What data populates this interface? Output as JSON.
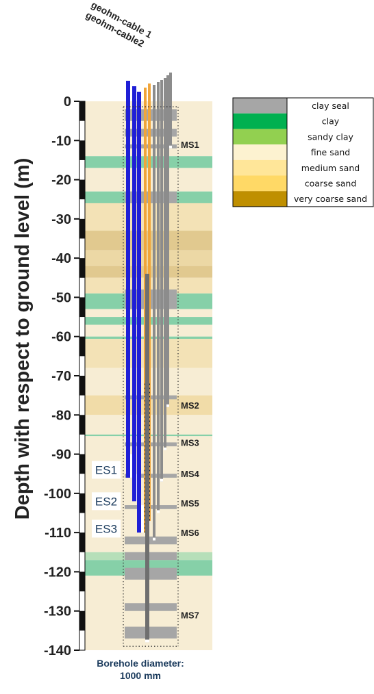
{
  "axis": {
    "ylabel": "Depth with respect to ground level (m)",
    "ticks": [
      0,
      -10,
      -20,
      -30,
      -40,
      -50,
      -60,
      -70,
      -80,
      -90,
      -100,
      -110,
      -120,
      -130,
      -140
    ],
    "range": [
      0,
      -140
    ]
  },
  "cables": [
    "geohm-cable 1",
    "geohm-cable2"
  ],
  "caption": {
    "line1": "Borehole diameter:",
    "line2": "1000 mm"
  },
  "legend": [
    {
      "label": "clay seal",
      "color": "#a6a6a6"
    },
    {
      "label": "clay",
      "color": "#00b050"
    },
    {
      "label": "sandy clay",
      "color": "#92d050"
    },
    {
      "label": "fine sand",
      "color": "#fdf2d0"
    },
    {
      "label": "medium sand",
      "color": "#ffe699"
    },
    {
      "label": "coarse sand",
      "color": "#ffd966"
    },
    {
      "label": "very coarse sand",
      "color": "#bf8f00"
    }
  ],
  "layers": [
    {
      "top": 0,
      "bottom": -14,
      "color": "#f7edd4"
    },
    {
      "top": -14,
      "bottom": -17,
      "color": "#86d0a8"
    },
    {
      "top": -17,
      "bottom": -23,
      "color": "#f7edd4"
    },
    {
      "top": -23,
      "bottom": -26,
      "color": "#86d0a8"
    },
    {
      "top": -26,
      "bottom": -33,
      "color": "#f3e2b6"
    },
    {
      "top": -33,
      "bottom": -38,
      "color": "#e1c98f"
    },
    {
      "top": -38,
      "bottom": -42,
      "color": "#ecd8a5"
    },
    {
      "top": -42,
      "bottom": -45,
      "color": "#e1c98f"
    },
    {
      "top": -45,
      "bottom": -49,
      "color": "#f3e2b6"
    },
    {
      "top": -49,
      "bottom": -53,
      "color": "#86d0a8"
    },
    {
      "top": -53,
      "bottom": -55,
      "color": "#f7edd4"
    },
    {
      "top": -55,
      "bottom": -57,
      "color": "#86d0a8"
    },
    {
      "top": -57,
      "bottom": -60,
      "color": "#f7edd4"
    },
    {
      "top": -60,
      "bottom": -60.6,
      "color": "#86d0a8"
    },
    {
      "top": -60.6,
      "bottom": -68,
      "color": "#f3e2b6"
    },
    {
      "top": -68,
      "bottom": -75,
      "color": "#f7edd4"
    },
    {
      "top": -75,
      "bottom": -80,
      "color": "#f1dca8"
    },
    {
      "top": -80,
      "bottom": -85,
      "color": "#f7edd4"
    },
    {
      "top": -85,
      "bottom": -85.4,
      "color": "#86d0a8"
    },
    {
      "top": -85.4,
      "bottom": -115,
      "color": "#f7edd4"
    },
    {
      "top": -115,
      "bottom": -117,
      "color": "#b6dfb9"
    },
    {
      "top": -117,
      "bottom": -121,
      "color": "#86d0a8"
    },
    {
      "top": -121,
      "bottom": -140,
      "color": "#f7edd4"
    }
  ],
  "seals": [
    {
      "top": -2,
      "bottom": -5
    },
    {
      "top": -7,
      "bottom": -9
    },
    {
      "top": -11,
      "bottom": -12
    },
    {
      "top": -23,
      "bottom": -26
    },
    {
      "top": -48,
      "bottom": -53
    },
    {
      "top": -75,
      "bottom": -76
    },
    {
      "top": -87,
      "bottom": -88
    },
    {
      "top": -95,
      "bottom": -96
    },
    {
      "top": -103,
      "bottom": -104
    },
    {
      "top": -111,
      "bottom": -113
    },
    {
      "top": -115,
      "bottom": -117
    },
    {
      "top": -119,
      "bottom": -122
    },
    {
      "top": -128,
      "bottom": -130
    },
    {
      "top": -134,
      "bottom": -137
    }
  ],
  "markers": [
    {
      "label": "MS1",
      "depth": -11
    },
    {
      "label": "MS2",
      "depth": -77.5
    },
    {
      "label": "MS3",
      "depth": -87
    },
    {
      "label": "MS4",
      "depth": -95
    },
    {
      "label": "MS5",
      "depth": -102.5
    },
    {
      "label": "MS6",
      "depth": -110
    },
    {
      "label": "MS7",
      "depth": -131
    }
  ],
  "electrodes": [
    {
      "label": "ES1",
      "depth": -94
    },
    {
      "label": "ES2",
      "depth": -102
    },
    {
      "label": "ES3",
      "depth": -109
    }
  ],
  "blue_pipes": [
    {
      "bottom": -90,
      "tip": -96
    },
    {
      "bottom": -95,
      "tip": -102
    },
    {
      "bottom": -103,
      "tip": -110
    }
  ],
  "orange_pipes": [
    {
      "bottom": -110
    },
    {
      "bottom": -107
    }
  ],
  "gray_pipes": [
    {
      "bottom": -112
    },
    {
      "bottom": -105
    },
    {
      "bottom": -97
    },
    {
      "bottom": -89
    },
    {
      "bottom": -78
    },
    {
      "bottom": -12
    },
    {
      "bottom": -138
    }
  ]
}
